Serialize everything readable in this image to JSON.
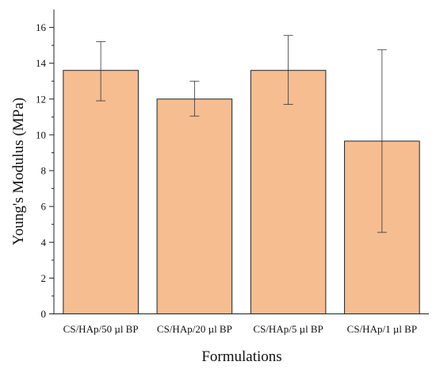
{
  "chart_data": {
    "type": "bar",
    "title": "",
    "xlabel": "Formulations",
    "ylabel": "Young's Modulus (MPa)",
    "categories": [
      "CS/HAp/50 µl BP",
      "CS/HAp/20 µl BP",
      "CS/HAp/5 µl BP",
      "CS/HAp/1 µl BP"
    ],
    "values": [
      13.6,
      12.0,
      13.6,
      9.65
    ],
    "error_high": [
      15.2,
      13.0,
      15.55,
      14.75
    ],
    "error_low": [
      11.9,
      11.05,
      11.7,
      4.55
    ],
    "ylim": [
      0,
      17
    ],
    "yticks": [
      0,
      2,
      4,
      6,
      8,
      10,
      12,
      14,
      16
    ],
    "ytick_labels": [
      "0",
      "2",
      "4",
      "6",
      "8",
      "10",
      "12",
      "14",
      "16"
    ],
    "grid": false,
    "legend": "none",
    "colors": {
      "bar_fill": "#f6bd91",
      "bar_stroke": "#222222",
      "error_bar": "#333333"
    }
  }
}
